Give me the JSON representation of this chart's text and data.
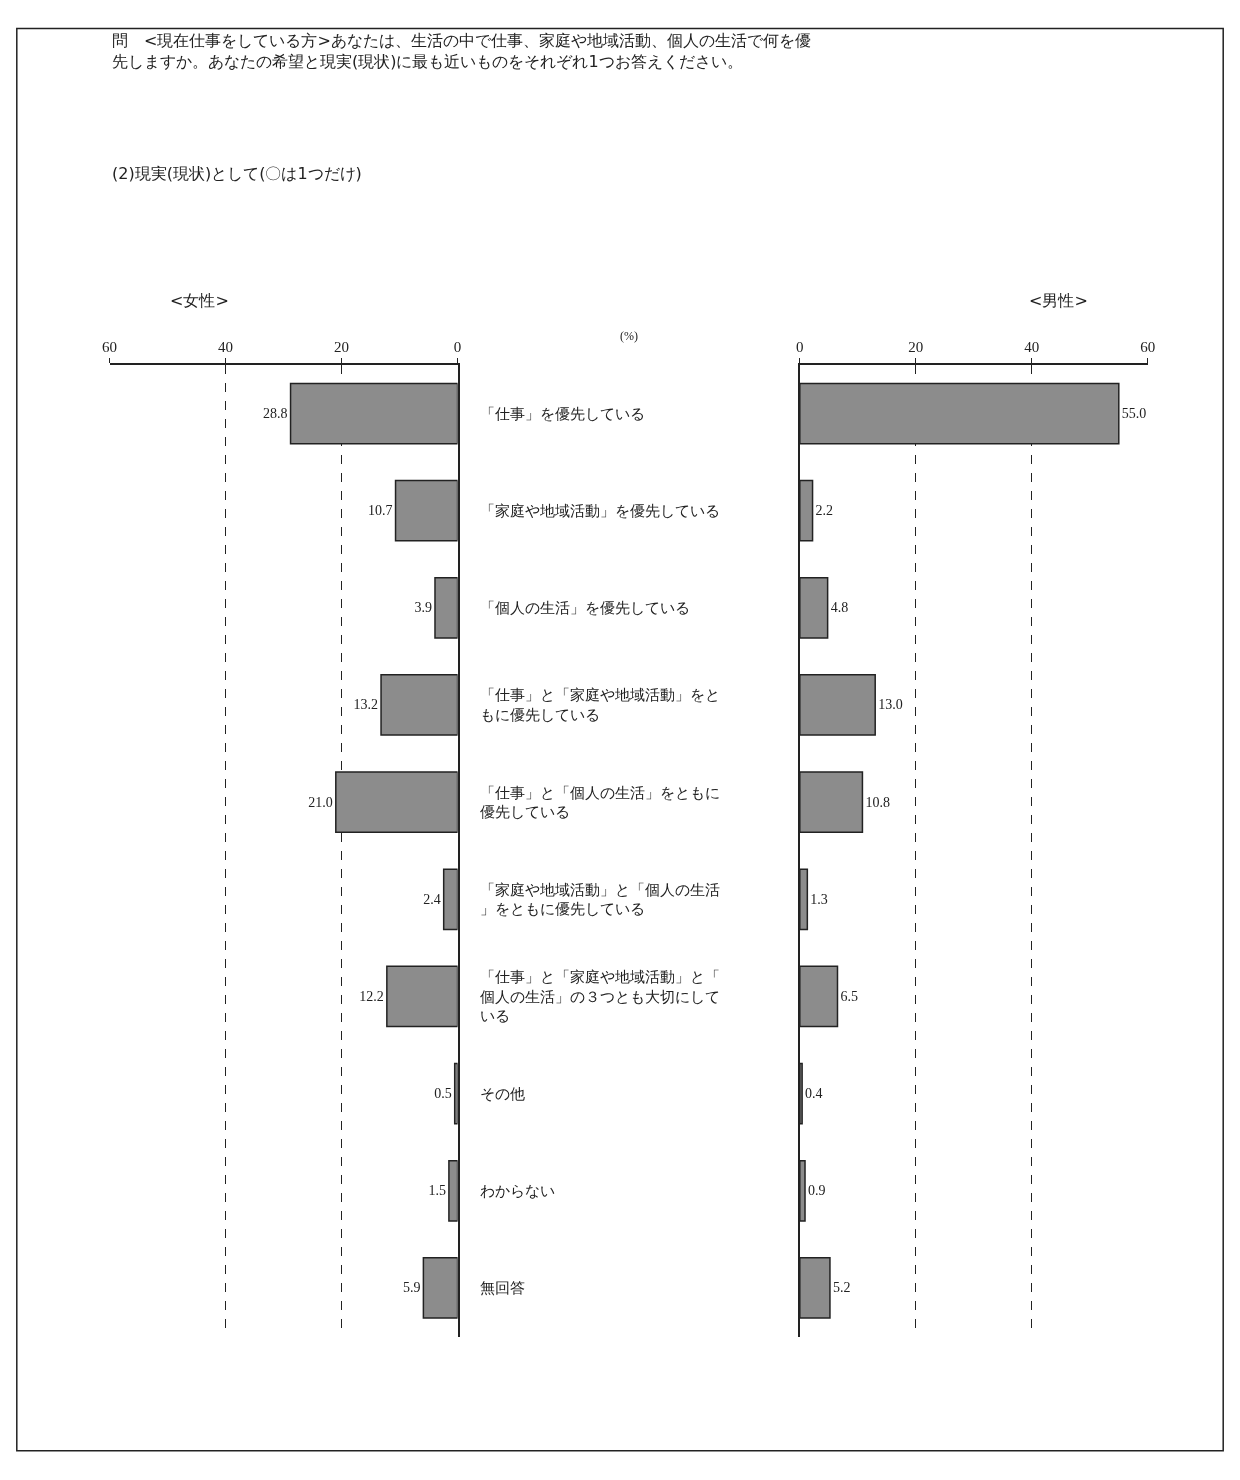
{
  "chart_data": [
    {
      "type": "bar",
      "orientation": "horizontal",
      "title": "<女性>",
      "subtitle": "(2)現実(現状)として(〇は1つだけ)",
      "annotations": [
        "問　<現在仕事をしている方>あなたは、生活の中で仕事、家庭や地域活動、個人の生活で何を優先しますか。あなたの希望と現実(現状)に最も近いものをそれぞれ1つお答えください。",
        "(%)"
      ],
      "categories": [
        "「仕事」を優先している",
        "「家庭や地域活動」を優先している",
        "「個人の生活」を優先している",
        "「仕事」と「家庭や地域活動」をともに優先している",
        "「仕事」と「個人の生活」をともに優先している",
        "「家庭や地域活動」と「個人の生活」をともに優先している",
        "「仕事」と「家庭や地域活動」と「個人の生活」の３つとも大切にしている",
        "その他",
        "わからない",
        "無回答"
      ],
      "values": [
        28.8,
        10.7,
        3.9,
        13.2,
        21.0,
        2.4,
        12.2,
        0.5,
        1.5,
        5.9
      ],
      "value_labels": [
        "28.8",
        "10.7",
        "3.9",
        "13.2",
        "21.0",
        "2.4",
        "12.2",
        "0.5",
        "1.5",
        "5.9"
      ],
      "color": "#8c8c8c",
      "xlim": [
        60,
        0
      ],
      "xticks": [
        60,
        40,
        20,
        0
      ],
      "grid": "x",
      "line_style": "dashed"
    },
    {
      "type": "bar",
      "orientation": "horizontal",
      "title": "<男性>",
      "categories": [
        "「仕事」を優先している",
        "「家庭や地域活動」を優先している",
        "「個人の生活」を優先している",
        "「仕事」と「家庭や地域活動」をともに優先している",
        "「仕事」と「個人の生活」をともに優先している",
        "「家庭や地域活動」と「個人の生活」をともに優先している",
        "「仕事」と「家庭や地域活動」と「個人の生活」の３つとも大切にしている",
        "その他",
        "わからない",
        "無回答"
      ],
      "values": [
        55.0,
        2.2,
        4.8,
        13.0,
        10.8,
        1.3,
        6.5,
        0.4,
        0.9,
        5.2
      ],
      "value_labels": [
        "55.0",
        "2.2",
        "4.8",
        "13.0",
        "10.8",
        "1.3",
        "6.5",
        "0.4",
        "0.9",
        "5.2"
      ],
      "color": "#8c8c8c",
      "xlim": [
        0,
        60
      ],
      "xticks": [
        0,
        20,
        40,
        60
      ],
      "grid": "x",
      "line_style": "dashed",
      "tick_labels": "x"
    }
  ]
}
